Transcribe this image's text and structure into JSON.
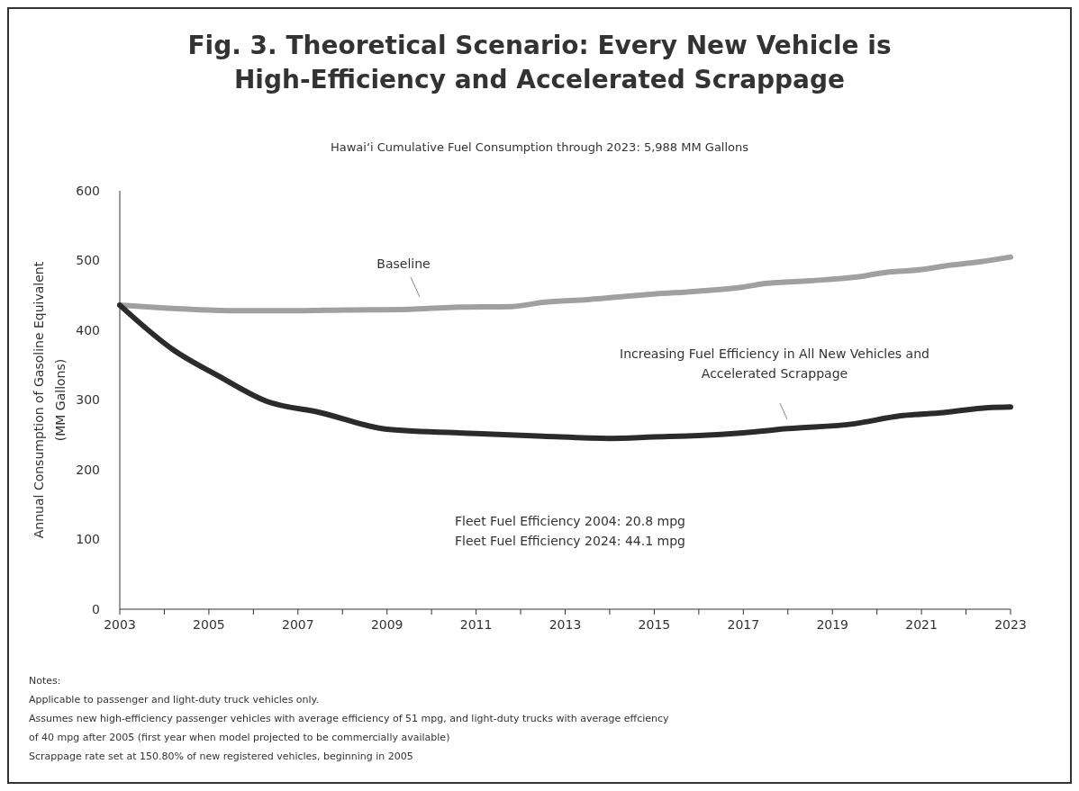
{
  "chart_data": {
    "type": "line",
    "title": "Fig. 3. Theoretical Scenario: Every New Vehicle is High-Efficiency and Accelerated Scrappage",
    "subtitle": "Hawai‘i Cumulative Fuel Consumption through 2023:  5,988 MM Gallons",
    "ylabel": "Annual Consumption of Gasoline Equivalent (MM Gallons)",
    "series": [
      {
        "name": "Baseline",
        "color": "#a0a0a0",
        "x": [
          2003,
          2004,
          2005,
          2005.5,
          2007,
          2008,
          2009.5,
          2010.5,
          2011.8,
          2012.5,
          2013.5,
          2015,
          2016,
          2017,
          2017.5,
          2018.5,
          2019.5,
          2020.2,
          2021,
          2021.5,
          2022.3,
          2023
        ],
        "values": [
          436,
          432,
          429,
          428,
          428,
          429,
          430,
          433,
          434,
          440,
          444,
          452,
          456,
          462,
          467,
          471,
          476,
          483,
          487,
          492,
          498,
          505
        ]
      },
      {
        "name": "Increasing Fuel Efficiency in All New Vehicles and Accelerated Scrappage",
        "color": "#2b2b2b",
        "x": [
          2003,
          2004.2,
          2005.2,
          2006.3,
          2007.5,
          2009,
          2011,
          2012.5,
          2014,
          2015,
          2016,
          2017,
          2018,
          2019.5,
          2020.5,
          2021.5,
          2022.5,
          2023
        ],
        "values": [
          436,
          372,
          335,
          298,
          282,
          258,
          252,
          248,
          245,
          247,
          249,
          253,
          259,
          266,
          277,
          282,
          289,
          290
        ]
      }
    ],
    "xlim": [
      2003,
      2023
    ],
    "xticks": [
      2003,
      {
        "value": 2004,
        "label": null
      },
      2005,
      {
        "value": 2006,
        "label": null
      },
      2007,
      {
        "value": 2008,
        "label": null
      },
      2009,
      {
        "value": 2010,
        "label": null
      },
      2011,
      {
        "value": 2012,
        "label": null
      },
      2013,
      {
        "value": 2014,
        "label": null
      },
      2015,
      {
        "value": 2016,
        "label": null
      },
      2017,
      {
        "value": 2018,
        "label": null
      },
      2019,
      {
        "value": 2020,
        "label": null
      },
      2021,
      {
        "value": 2022,
        "label": null
      },
      2023
    ],
    "ylim": [
      0,
      600
    ],
    "yticks": [
      0,
      100,
      200,
      300,
      400,
      500,
      600
    ],
    "grid": false,
    "legend": false,
    "line_style": "solid",
    "marker": "none",
    "annotations": [
      "Fleet Fuel Efficiency 2004:  20.8 mpg",
      "Fleet Fuel Efficiency 2024:  44.1 mpg",
      "Notes:",
      "Applicable to passenger and light-duty truck vehicles only.",
      "Assumes new high-efficiency passenger vehicles with average efficiency of 51 mpg, and light-duty trucks with average effciency of 40 mpg after 2005 (first year when model projected to be commercially available)",
      "Scrappage rate set at 150.80% of new registered vehicles, beginning in 2005"
    ]
  }
}
